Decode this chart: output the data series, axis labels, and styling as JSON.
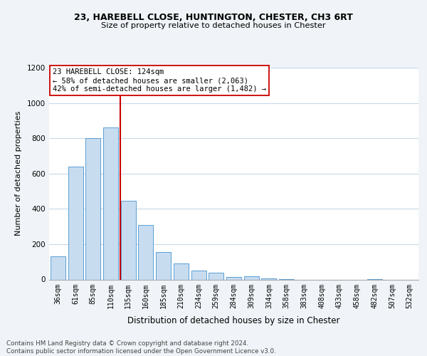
{
  "title1": "23, HAREBELL CLOSE, HUNTINGTON, CHESTER, CH3 6RT",
  "title2": "Size of property relative to detached houses in Chester",
  "xlabel": "Distribution of detached houses by size in Chester",
  "ylabel": "Number of detached properties",
  "categories": [
    "36sqm",
    "61sqm",
    "85sqm",
    "110sqm",
    "135sqm",
    "160sqm",
    "185sqm",
    "210sqm",
    "234sqm",
    "259sqm",
    "284sqm",
    "309sqm",
    "334sqm",
    "358sqm",
    "383sqm",
    "408sqm",
    "433sqm",
    "458sqm",
    "482sqm",
    "507sqm",
    "532sqm"
  ],
  "values": [
    130,
    640,
    800,
    860,
    445,
    310,
    155,
    90,
    52,
    40,
    15,
    20,
    8,
    2,
    0,
    0,
    0,
    0,
    2,
    0,
    0
  ],
  "bar_color": "#c8dcf0",
  "bar_edge_color": "#5a9fd4",
  "vline_color": "#cc0000",
  "annotation_line1": "23 HAREBELL CLOSE: 124sqm",
  "annotation_line2": "← 58% of detached houses are smaller (2,063)",
  "annotation_line3": "42% of semi-detached houses are larger (1,482) →",
  "annotation_box_edge_color": "#cc0000",
  "annotation_box_face_color": "#ffffff",
  "ylim": [
    0,
    1200
  ],
  "yticks": [
    0,
    200,
    400,
    600,
    800,
    1000,
    1200
  ],
  "footer_text": "Contains HM Land Registry data © Crown copyright and database right 2024.\nContains public sector information licensed under the Open Government Licence v3.0.",
  "background_color": "#f0f4f8",
  "plot_bg_color": "#ffffff",
  "grid_color": "#c8d8e8"
}
